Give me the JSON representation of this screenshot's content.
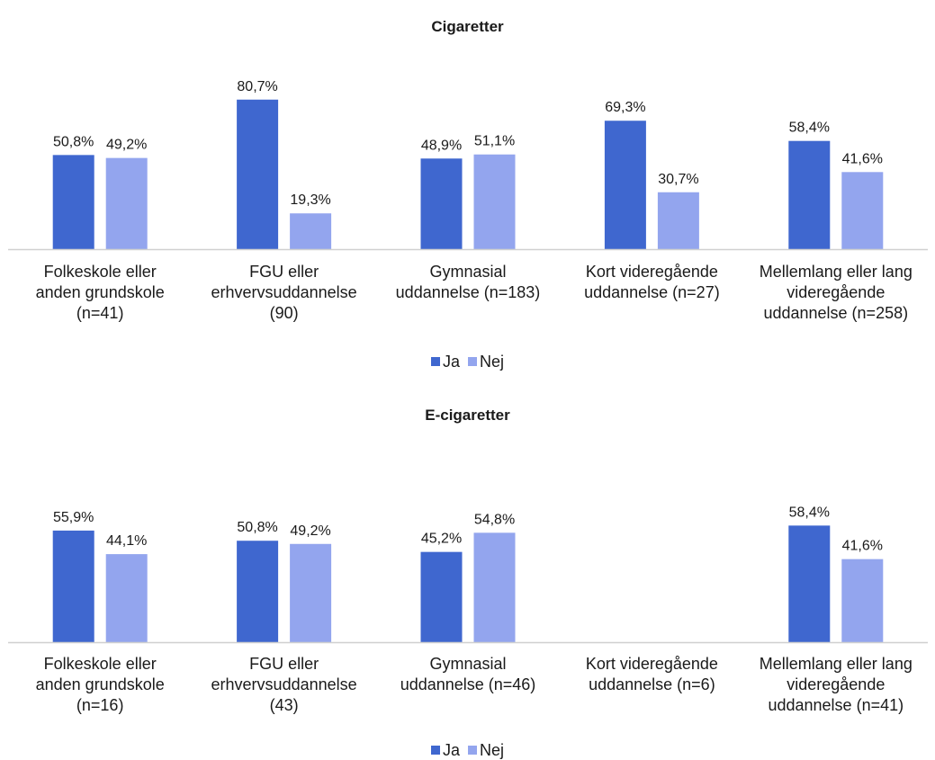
{
  "colors": {
    "ja": "#3f67cf",
    "nej": "#93a5ee",
    "axis": "#d0d0d0",
    "text": "#1a1a1a"
  },
  "chart_data": [
    {
      "type": "bar",
      "title": "Cigaretter",
      "categories": [
        "Folkeskole eller anden grundskole (n=41)",
        "FGU eller erhvervsuddannelse (90)",
        "Gymnasial uddannelse (n=183)",
        "Kort videregående uddannelse (n=27)",
        "Mellemlang eller lang videregående uddannelse (n=258)"
      ],
      "category_lines": [
        [
          "Folkeskole eller",
          "anden grundskole",
          "(n=41)"
        ],
        [
          "FGU eller",
          "erhvervsuddannelse",
          "(90)"
        ],
        [
          "Gymnasial",
          "uddannelse (n=183)"
        ],
        [
          "Kort videregående",
          "uddannelse (n=27)"
        ],
        [
          "Mellemlang eller lang",
          "videregående",
          "uddannelse (n=258)"
        ]
      ],
      "series": [
        {
          "name": "Ja",
          "values": [
            50.8,
            80.7,
            48.9,
            69.3,
            58.4
          ],
          "labels": [
            "50,8%",
            "80,7%",
            "48,9%",
            "69,3%",
            "58,4%"
          ]
        },
        {
          "name": "Nej",
          "values": [
            49.2,
            19.3,
            51.1,
            30.7,
            41.6
          ],
          "labels": [
            "49,2%",
            "19,3%",
            "51,1%",
            "30,7%",
            "41,6%"
          ]
        }
      ],
      "ylim": [
        0,
        100
      ],
      "grid": false,
      "legend": "bottom"
    },
    {
      "type": "bar",
      "title": "E-cigaretter",
      "categories": [
        "Folkeskole eller anden grundskole (n=16)",
        "FGU eller erhvervsuddannelse (43)",
        "Gymnasial uddannelse (n=46)",
        "Kort videregående uddannelse (n=6)",
        "Mellemlang eller lang videregående uddannelse (n=41)"
      ],
      "category_lines": [
        [
          "Folkeskole eller",
          "anden grundskole",
          "(n=16)"
        ],
        [
          "FGU eller",
          "erhvervsuddannelse",
          "(43)"
        ],
        [
          "Gymnasial",
          "uddannelse (n=46)"
        ],
        [
          "Kort videregående",
          "uddannelse (n=6)"
        ],
        [
          "Mellemlang eller lang",
          "videregående",
          "uddannelse (n=41)"
        ]
      ],
      "series": [
        {
          "name": "Ja",
          "values": [
            55.9,
            50.8,
            45.2,
            null,
            58.4
          ],
          "labels": [
            "55,9%",
            "50,8%",
            "45,2%",
            "",
            "58,4%"
          ]
        },
        {
          "name": "Nej",
          "values": [
            44.1,
            49.2,
            54.8,
            null,
            41.6
          ],
          "labels": [
            "44,1%",
            "49,2%",
            "54,8%",
            "",
            "41,6%"
          ]
        }
      ],
      "ylim": [
        0,
        100
      ],
      "grid": false,
      "legend": "bottom"
    }
  ]
}
